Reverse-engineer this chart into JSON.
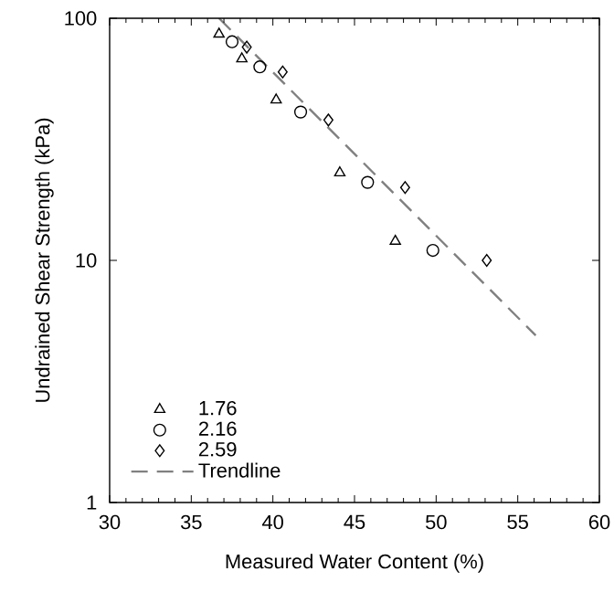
{
  "chart_data": {
    "type": "scatter",
    "xlabel": "Measured Water Content (%)",
    "ylabel": "Undrained Shear Strength (kPa)",
    "xlim": [
      30,
      60
    ],
    "xticks": [
      30,
      35,
      40,
      45,
      50,
      55,
      60
    ],
    "ylim": [
      1,
      100
    ],
    "yticks": [
      1,
      10,
      100
    ],
    "log": "y",
    "legend": "bottom left",
    "series": [
      {
        "name": "1.76",
        "color": "#000000",
        "marker": "triangle",
        "x": [
          36.7,
          38.1,
          40.2,
          44.1,
          47.5
        ],
        "values": [
          86,
          68,
          46,
          23,
          12
        ]
      },
      {
        "name": "2.16",
        "color": "#000000",
        "marker": "circle",
        "x": [
          37.5,
          39.2,
          41.7,
          45.8,
          49.8
        ],
        "values": [
          80,
          63,
          41,
          21,
          11
        ]
      },
      {
        "name": "2.59",
        "color": "#000000",
        "marker": "diamond",
        "x": [
          38.4,
          40.6,
          43.4,
          48.1,
          53.1
        ],
        "values": [
          76,
          60,
          38,
          20,
          10
        ]
      },
      {
        "name": "Trendline",
        "type": "line",
        "line_style": "dashed",
        "marker": "none",
        "color": "#808080",
        "x": [
          36.7,
          56.1
        ],
        "values": [
          100,
          4.9
        ]
      }
    ]
  }
}
